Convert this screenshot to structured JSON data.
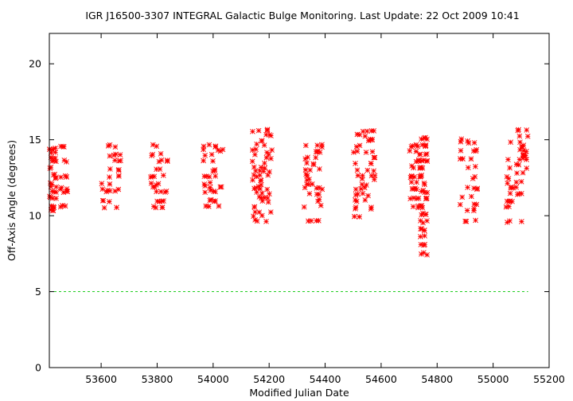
{
  "chart_data": {
    "type": "scatter",
    "title": "IGR J16500-3307   INTEGRAL Galactic Bulge Monitoring.  Last Update: 22 Oct 2009 10:41",
    "xlabel": "Modified Julian Date",
    "ylabel": "Off-Axis Angle (degrees)",
    "xlim": [
      53415,
      55200
    ],
    "ylim": [
      0,
      22
    ],
    "x_ticks": [
      53600,
      53800,
      54000,
      54200,
      54400,
      54600,
      54800,
      55000,
      55200
    ],
    "y_ticks": [
      0,
      5,
      10,
      15,
      20
    ],
    "grid": false,
    "point_color": "#ff0000",
    "reference_line": {
      "y": 5,
      "x_range": [
        53415,
        55125
      ],
      "color": "#00c800",
      "style": "dashed"
    },
    "groups": [
      {
        "x_range": [
          53415,
          53440
        ],
        "y_levels": [
          10.4,
          10.6,
          11.2,
          11.6,
          11.9,
          12.1,
          12.5,
          12.7,
          13.2,
          13.6,
          13.8,
          14.1,
          14.4
        ]
      },
      {
        "x_range": [
          53455,
          53480
        ],
        "y_levels": [
          10.6,
          11.6,
          11.8,
          12.6,
          13.6,
          14.6
        ]
      },
      {
        "x_range": [
          53600,
          53670
        ],
        "y_levels": [
          10.6,
          11.0,
          11.6,
          11.8,
          12.1,
          12.6,
          13.0,
          13.6,
          14.0,
          14.6
        ]
      },
      {
        "x_range": [
          53775,
          53840
        ],
        "y_levels": [
          10.6,
          11.0,
          11.6,
          11.9,
          12.1,
          12.6,
          13.1,
          13.6,
          14.0,
          14.6
        ]
      },
      {
        "x_range": [
          53965,
          54035
        ],
        "y_levels": [
          10.6,
          11.0,
          11.6,
          11.9,
          12.1,
          12.6,
          13.0,
          13.6,
          14.0,
          14.3,
          14.6
        ]
      },
      {
        "x_range": [
          54140,
          54210
        ],
        "y_levels": [
          9.7,
          10.0,
          10.3,
          10.6,
          10.9,
          11.2,
          11.5,
          11.8,
          12.0,
          12.3,
          12.6,
          12.9,
          13.2,
          13.5,
          13.8,
          14.1,
          14.4,
          14.7,
          15.0,
          15.3,
          15.6
        ]
      },
      {
        "x_range": [
          54325,
          54390
        ],
        "y_levels": [
          9.7,
          10.6,
          11.0,
          11.4,
          11.8,
          12.1,
          12.4,
          12.7,
          13.0,
          13.4,
          13.8,
          14.2,
          14.6
        ]
      },
      {
        "x_range": [
          54500,
          54580
        ],
        "y_levels": [
          9.9,
          10.5,
          11.0,
          11.4,
          11.8,
          12.1,
          12.4,
          12.7,
          13.0,
          13.4,
          13.8,
          14.2,
          14.6,
          15.0,
          15.3,
          15.6
        ]
      },
      {
        "x_range": [
          54700,
          54735
        ],
        "y_levels": [
          10.6,
          11.2,
          11.8,
          12.2,
          12.6,
          13.2,
          13.6,
          14.2,
          14.6
        ]
      },
      {
        "x_range": [
          54738,
          54765
        ],
        "y_levels": [
          7.5,
          8.1,
          8.6,
          9.1,
          9.6,
          10.1,
          10.6,
          11.1,
          11.6,
          12.1,
          12.6,
          13.1,
          13.6,
          14.1,
          14.6,
          15.1
        ]
      },
      {
        "x_range": [
          54875,
          54945
        ],
        "y_levels": [
          9.7,
          10.4,
          10.8,
          11.3,
          11.8,
          12.5,
          13.2,
          13.7,
          14.3,
          14.8,
          15.0
        ]
      },
      {
        "x_range": [
          55045,
          55125
        ],
        "y_levels": [
          9.6,
          10.6,
          11.0,
          11.4,
          11.8,
          12.2,
          12.5,
          12.8,
          13.1,
          13.4,
          13.7,
          14.0,
          14.3,
          14.6,
          14.9,
          15.2,
          15.6
        ]
      }
    ]
  }
}
